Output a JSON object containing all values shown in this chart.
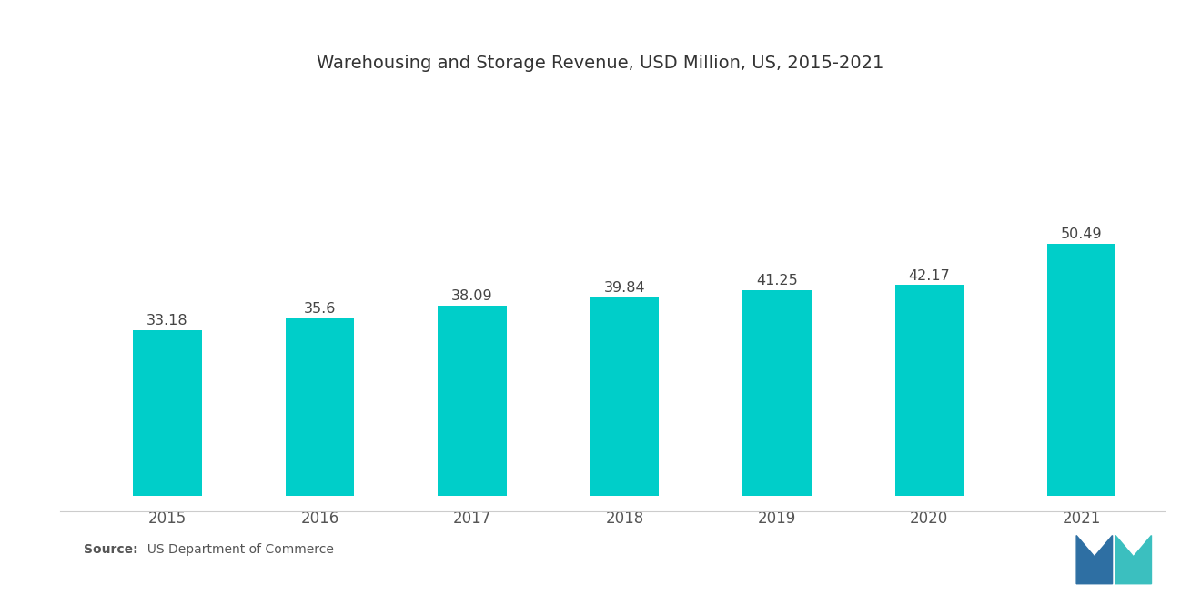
{
  "title": "Warehousing and Storage Revenue, USD Million, US, 2015-2021",
  "categories": [
    "2015",
    "2016",
    "2017",
    "2018",
    "2019",
    "2020",
    "2021"
  ],
  "values": [
    33.18,
    35.6,
    38.09,
    39.84,
    41.25,
    42.17,
    50.49
  ],
  "bar_color": "#00CEC9",
  "background_color": "#ffffff",
  "title_fontsize": 14,
  "value_fontsize": 11.5,
  "tick_fontsize": 12,
  "source_bold": "Source:",
  "source_normal": "  US Department of Commerce",
  "ylim": [
    0,
    75
  ],
  "bar_width": 0.45
}
